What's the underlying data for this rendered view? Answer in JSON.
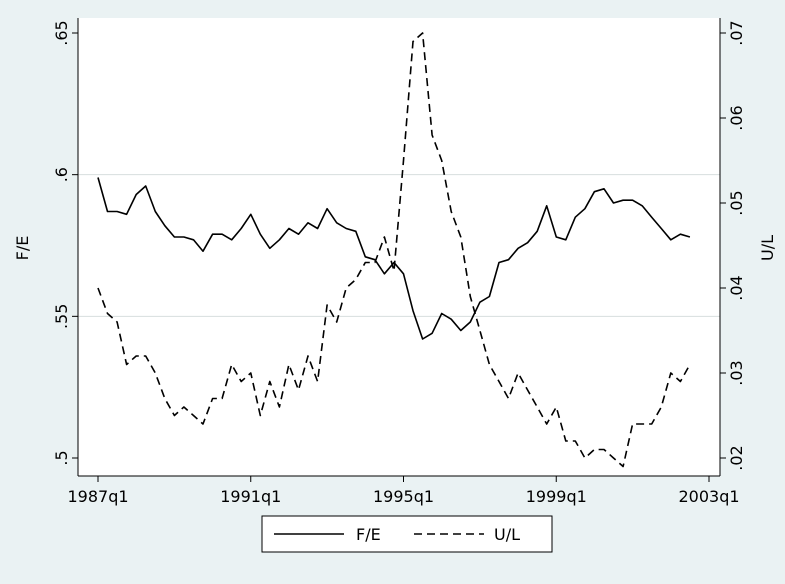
{
  "chart_data": {
    "type": "line",
    "title": "",
    "xlabel": "",
    "ylabel": "F/E",
    "y2label": "U/L",
    "x_ticks": [
      "1987q1",
      "1991q1",
      "1995q1",
      "1999q1",
      "2003q1"
    ],
    "x_tick_values": [
      1987.0,
      1991.0,
      1995.0,
      1999.0,
      2003.0
    ],
    "xlim": [
      1987.0,
      2003.0
    ],
    "ylim": [
      0.5,
      0.65
    ],
    "y_ticks": [
      ".5",
      ".55",
      ".6",
      ".65"
    ],
    "y_tick_values": [
      0.5,
      0.55,
      0.6,
      0.65
    ],
    "y2lim": [
      0.02,
      0.07
    ],
    "y2_ticks": [
      ".02",
      ".03",
      ".04",
      ".05",
      ".06",
      ".07"
    ],
    "y2_tick_values": [
      0.02,
      0.03,
      0.04,
      0.05,
      0.06,
      0.07
    ],
    "grid": true,
    "legend_position": "bottom",
    "series": [
      {
        "name": "F/E",
        "axis": "left",
        "style": "solid",
        "color": "#000000",
        "x": [
          1987.0,
          1987.25,
          1987.5,
          1987.75,
          1988.0,
          1988.25,
          1988.5,
          1988.75,
          1989.0,
          1989.25,
          1989.5,
          1989.75,
          1990.0,
          1990.25,
          1990.5,
          1990.75,
          1991.0,
          1991.25,
          1991.5,
          1991.75,
          1992.0,
          1992.25,
          1992.5,
          1992.75,
          1993.0,
          1993.25,
          1993.5,
          1993.75,
          1994.0,
          1994.25,
          1994.5,
          1994.75,
          1995.0,
          1995.25,
          1995.5,
          1995.75,
          1996.0,
          1996.25,
          1996.5,
          1996.75,
          1997.0,
          1997.25,
          1997.5,
          1997.75,
          1998.0,
          1998.25,
          1998.5,
          1998.75,
          1999.0,
          1999.25,
          1999.5,
          1999.75,
          2000.0,
          2000.25,
          2000.5,
          2000.75,
          2001.0,
          2001.25,
          2001.5,
          2001.75,
          2002.0,
          2002.25,
          2002.5
        ],
        "values": [
          0.599,
          0.587,
          0.587,
          0.586,
          0.593,
          0.596,
          0.587,
          0.582,
          0.578,
          0.578,
          0.577,
          0.573,
          0.579,
          0.579,
          0.577,
          0.581,
          0.586,
          0.579,
          0.574,
          0.577,
          0.581,
          0.579,
          0.583,
          0.581,
          0.588,
          0.583,
          0.581,
          0.58,
          0.571,
          0.57,
          0.565,
          0.569,
          0.565,
          0.552,
          0.542,
          0.544,
          0.551,
          0.549,
          0.545,
          0.548,
          0.555,
          0.557,
          0.569,
          0.57,
          0.574,
          0.576,
          0.58,
          0.589,
          0.578,
          0.577,
          0.585,
          0.588,
          0.594,
          0.595,
          0.59,
          0.591,
          0.591,
          0.589,
          0.585,
          0.581,
          0.577,
          0.579,
          0.578
        ]
      },
      {
        "name": "U/L",
        "axis": "right",
        "style": "dashed",
        "color": "#000000",
        "x": [
          1987.0,
          1987.25,
          1987.5,
          1987.75,
          1988.0,
          1988.25,
          1988.5,
          1988.75,
          1989.0,
          1989.25,
          1989.5,
          1989.75,
          1990.0,
          1990.25,
          1990.5,
          1990.75,
          1991.0,
          1991.25,
          1991.5,
          1991.75,
          1992.0,
          1992.25,
          1992.5,
          1992.75,
          1993.0,
          1993.25,
          1993.5,
          1993.75,
          1994.0,
          1994.25,
          1994.5,
          1994.75,
          1995.0,
          1995.25,
          1995.5,
          1995.75,
          1996.0,
          1996.25,
          1996.5,
          1996.75,
          1997.0,
          1997.25,
          1997.5,
          1997.75,
          1998.0,
          1998.25,
          1998.5,
          1998.75,
          1999.0,
          1999.25,
          1999.5,
          1999.75,
          2000.0,
          2000.25,
          2000.5,
          2000.75,
          2001.0,
          2001.25,
          2001.5,
          2001.75,
          2002.0,
          2002.25,
          2002.5
        ],
        "values": [
          0.04,
          0.037,
          0.036,
          0.031,
          0.032,
          0.032,
          0.03,
          0.027,
          0.025,
          0.026,
          0.025,
          0.024,
          0.027,
          0.027,
          0.031,
          0.029,
          0.03,
          0.025,
          0.029,
          0.026,
          0.031,
          0.028,
          0.032,
          0.029,
          0.038,
          0.036,
          0.04,
          0.041,
          0.043,
          0.043,
          0.046,
          0.042,
          0.055,
          0.069,
          0.07,
          0.058,
          0.055,
          0.049,
          0.046,
          0.039,
          0.035,
          0.031,
          0.029,
          0.027,
          0.03,
          0.028,
          0.026,
          0.024,
          0.026,
          0.022,
          0.022,
          0.02,
          0.021,
          0.021,
          0.02,
          0.019,
          0.024,
          0.024,
          0.024,
          0.026,
          0.03,
          0.029,
          0.031
        ]
      }
    ]
  }
}
